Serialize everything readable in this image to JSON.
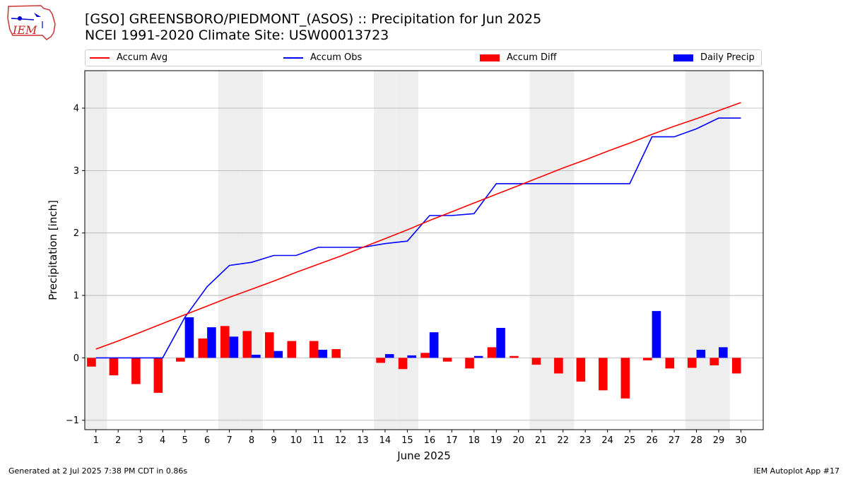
{
  "header": {
    "title_line1": "[GSO] GREENSBORO/PIEDMONT_(ASOS) :: Precipitation for Jun 2025",
    "title_line2": "NCEI 1991-2020 Climate Site: USW00013723",
    "logo_text": "IEM"
  },
  "footer": {
    "left": "Generated at 2 Jul 2025 7:38 PM CDT in 0.86s",
    "right": "IEM Autoplot App #17"
  },
  "colors": {
    "accum_avg": "#ff0000",
    "accum_obs": "#0000ff",
    "accum_diff": "#ff0000",
    "daily_precip": "#0000ff",
    "weekend_band": "#eeeeee",
    "grid": "#b0b0b0"
  },
  "chart_data": {
    "type": "bar",
    "xlabel": "June 2025",
    "ylabel": "Precipitation [inch]",
    "xlim": [
      0.5,
      31.0
    ],
    "ylim": [
      -1.15,
      4.6
    ],
    "yticks": [
      -1,
      0,
      1,
      2,
      3,
      4
    ],
    "grid": "horizontal",
    "legend_position": "top",
    "weekend_days": [
      1,
      7,
      8,
      14,
      15,
      21,
      22,
      28,
      29
    ],
    "days": [
      1,
      2,
      3,
      4,
      5,
      6,
      7,
      8,
      9,
      10,
      11,
      12,
      13,
      14,
      15,
      16,
      17,
      18,
      19,
      20,
      21,
      22,
      23,
      24,
      25,
      26,
      27,
      28,
      29,
      30
    ],
    "series": [
      {
        "name": "Accum Avg",
        "kind": "line",
        "values": [
          0.14,
          0.27,
          0.41,
          0.55,
          0.69,
          0.83,
          0.97,
          1.1,
          1.23,
          1.37,
          1.5,
          1.63,
          1.77,
          1.91,
          2.05,
          2.2,
          2.34,
          2.48,
          2.62,
          2.76,
          2.9,
          3.04,
          3.17,
          3.31,
          3.44,
          3.58,
          3.71,
          3.83,
          3.96,
          4.09
        ]
      },
      {
        "name": "Accum Obs",
        "kind": "line",
        "values": [
          0.0,
          0.0,
          0.0,
          0.0,
          0.65,
          1.14,
          1.48,
          1.53,
          1.64,
          1.64,
          1.77,
          1.77,
          1.77,
          1.83,
          1.87,
          2.28,
          2.28,
          2.31,
          2.79,
          2.79,
          2.79,
          2.79,
          2.79,
          2.79,
          2.79,
          3.54,
          3.54,
          3.67,
          3.84,
          3.84
        ]
      },
      {
        "name": "Accum Diff",
        "kind": "bar",
        "values": [
          -0.14,
          -0.28,
          -0.42,
          -0.56,
          -0.06,
          0.31,
          0.51,
          0.43,
          0.41,
          0.27,
          0.27,
          0.14,
          0.0,
          -0.08,
          -0.18,
          0.08,
          -0.06,
          -0.17,
          0.17,
          0.03,
          -0.11,
          -0.25,
          -0.38,
          -0.52,
          -0.65,
          -0.04,
          -0.17,
          -0.16,
          -0.12,
          -0.25
        ]
      },
      {
        "name": "Daily Precip",
        "kind": "bar",
        "values": [
          0,
          0,
          0,
          0,
          0.65,
          0.49,
          0.34,
          0.05,
          0.11,
          0,
          0.13,
          0,
          0,
          0.06,
          0.04,
          0.41,
          0,
          0.03,
          0.48,
          0,
          0,
          0,
          0,
          0,
          0,
          0.75,
          0,
          0.13,
          0.17,
          0
        ]
      }
    ]
  }
}
